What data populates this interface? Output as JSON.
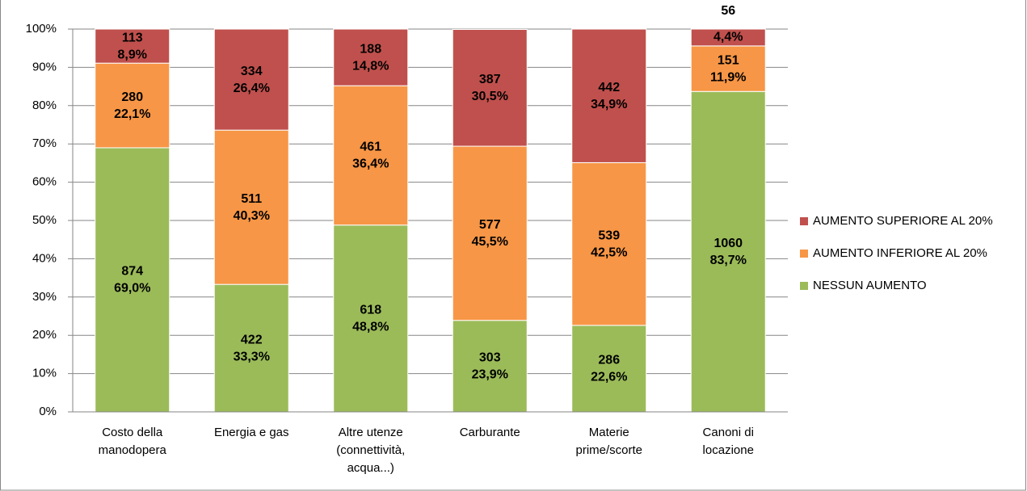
{
  "chart_data": {
    "type": "stacked_bar_100",
    "categories": [
      "Costo della\nmanodopera",
      "Energia e gas",
      "Altre utenze\n(connettività,\nacqua...)",
      "Carburante",
      "Materie\nprime/scorte",
      "Canoni di\nlocazione"
    ],
    "series": [
      {
        "name": "NESSUN AUMENTO",
        "color": "#9bbb59",
        "values": [
          69.0,
          33.3,
          48.8,
          23.9,
          22.6,
          83.7
        ],
        "value_labels": [
          "69,0%",
          "33,3%",
          "48,8%",
          "23,9%",
          "22,6%",
          "83,7%"
        ],
        "counts": [
          874,
          422,
          618,
          303,
          286,
          1060
        ]
      },
      {
        "name": "AUMENTO INFERIORE AL 20%",
        "color": "#f79646",
        "values": [
          22.1,
          40.3,
          36.4,
          45.5,
          42.5,
          11.9
        ],
        "value_labels": [
          "22,1%",
          "40,3%",
          "36,4%",
          "45,5%",
          "42,5%",
          "11,9%"
        ],
        "counts": [
          280,
          511,
          461,
          577,
          539,
          151
        ]
      },
      {
        "name": "AUMENTO SUPERIORE AL 20%",
        "color": "#c0504d",
        "values": [
          8.9,
          26.4,
          14.8,
          30.5,
          34.9,
          4.4
        ],
        "value_labels": [
          "8,9%",
          "26,4%",
          "14,8%",
          "30,5%",
          "34,9%",
          "4,4%"
        ],
        "counts": [
          113,
          334,
          188,
          387,
          442,
          56
        ]
      }
    ],
    "ylim": [
      0,
      100
    ],
    "yticks": [
      {
        "value": 0,
        "label": "0%"
      },
      {
        "value": 10,
        "label": "10%"
      },
      {
        "value": 20,
        "label": "20%"
      },
      {
        "value": 30,
        "label": "30%"
      },
      {
        "value": 40,
        "label": "40%"
      },
      {
        "value": 50,
        "label": "50%"
      },
      {
        "value": 60,
        "label": "60%"
      },
      {
        "value": 70,
        "label": "70%"
      },
      {
        "value": 80,
        "label": "80%"
      },
      {
        "value": 90,
        "label": "90%"
      },
      {
        "value": 100,
        "label": "100%"
      }
    ],
    "grid": true,
    "legend": "right"
  }
}
